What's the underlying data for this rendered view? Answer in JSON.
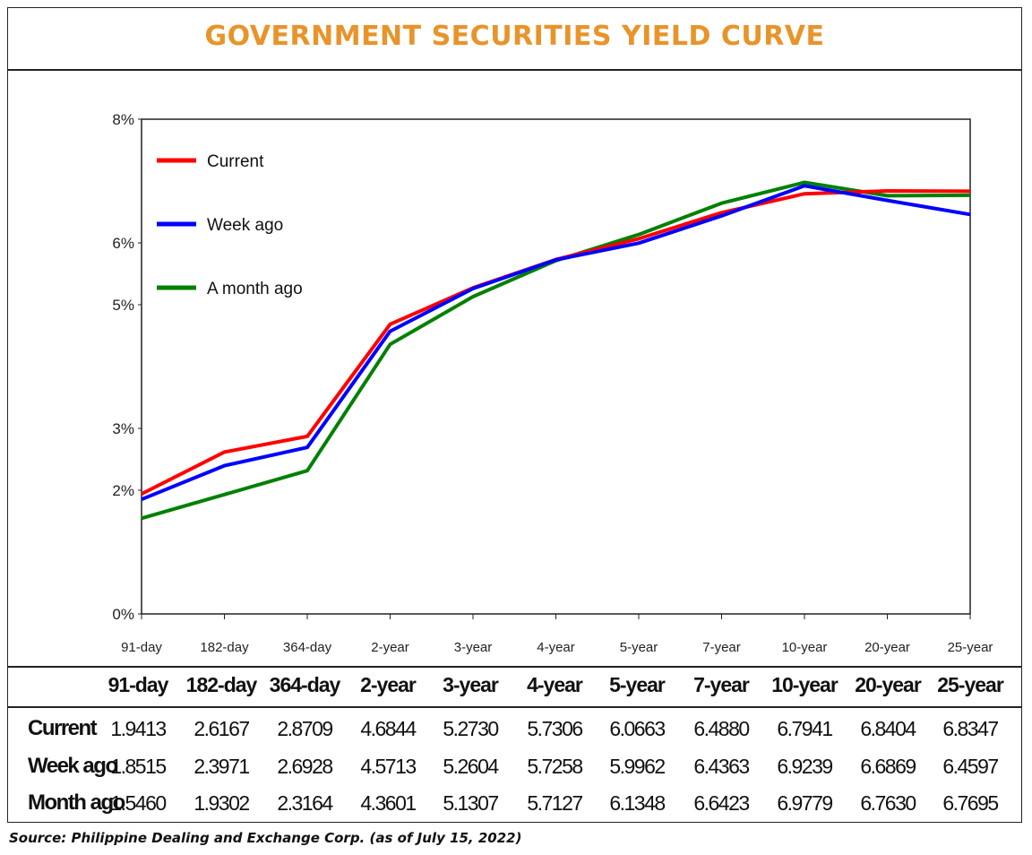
{
  "title": "GOVERNMENT SECURITIES YIELD CURVE",
  "source": "Source: Philippine Dealing and Exchange Corp. (as of July 15, 2022)",
  "colors": {
    "title": "#e8942a",
    "current": "#ff0000",
    "week_ago": "#0000ff",
    "month_ago": "#008000"
  },
  "chart_data": {
    "type": "line",
    "title": "GOVERNMENT SECURITIES YIELD CURVE",
    "xlabel": "",
    "ylabel": "",
    "categories": [
      "91-day",
      "182-day",
      "364-day",
      "2-year",
      "3-year",
      "4-year",
      "5-year",
      "7-year",
      "10-year",
      "20-year",
      "25-year"
    ],
    "y_ticks": [
      0,
      2,
      3,
      5,
      6,
      8
    ],
    "y_tick_labels": [
      "0%",
      "2%",
      "3%",
      "5%",
      "6%",
      "8%"
    ],
    "ylim": [
      0,
      8
    ],
    "grid": false,
    "legend_position": "top-left",
    "series": [
      {
        "name": "Current",
        "key": "current",
        "values": [
          1.9413,
          2.6167,
          2.8709,
          4.6844,
          5.273,
          5.7306,
          6.0663,
          6.488,
          6.7941,
          6.8404,
          6.8347
        ]
      },
      {
        "name": "Week ago",
        "key": "week_ago",
        "values": [
          1.8515,
          2.3971,
          2.6928,
          4.5713,
          5.2604,
          5.7258,
          5.9962,
          6.4363,
          6.9239,
          6.6869,
          6.4597
        ]
      },
      {
        "name": "A month ago",
        "key": "month_ago",
        "values": [
          1.546,
          1.9302,
          2.3164,
          4.3601,
          5.1307,
          5.7127,
          6.1348,
          6.6423,
          6.9779,
          6.763,
          6.7695
        ]
      }
    ]
  },
  "table": {
    "headers": [
      "91-day",
      "182-day",
      "364-day",
      "2-year",
      "3-year",
      "4-year",
      "5-year",
      "7-year",
      "10-year",
      "20-year",
      "25-year"
    ],
    "rows": [
      {
        "label": "Current",
        "values": [
          "1.9413",
          "2.6167",
          "2.8709",
          "4.6844",
          "5.2730",
          "5.7306",
          "6.0663",
          "6.4880",
          "6.7941",
          "6.8404",
          "6.8347"
        ]
      },
      {
        "label": "Week ago",
        "values": [
          "1.8515",
          "2.3971",
          "2.6928",
          "4.5713",
          "5.2604",
          "5.7258",
          "5.9962",
          "6.4363",
          "6.9239",
          "6.6869",
          "6.4597"
        ]
      },
      {
        "label": "Month ago",
        "values": [
          "1.5460",
          "1.9302",
          "2.3164",
          "4.3601",
          "5.1307",
          "5.7127",
          "6.1348",
          "6.6423",
          "6.9779",
          "6.7630",
          "6.7695"
        ]
      }
    ]
  }
}
